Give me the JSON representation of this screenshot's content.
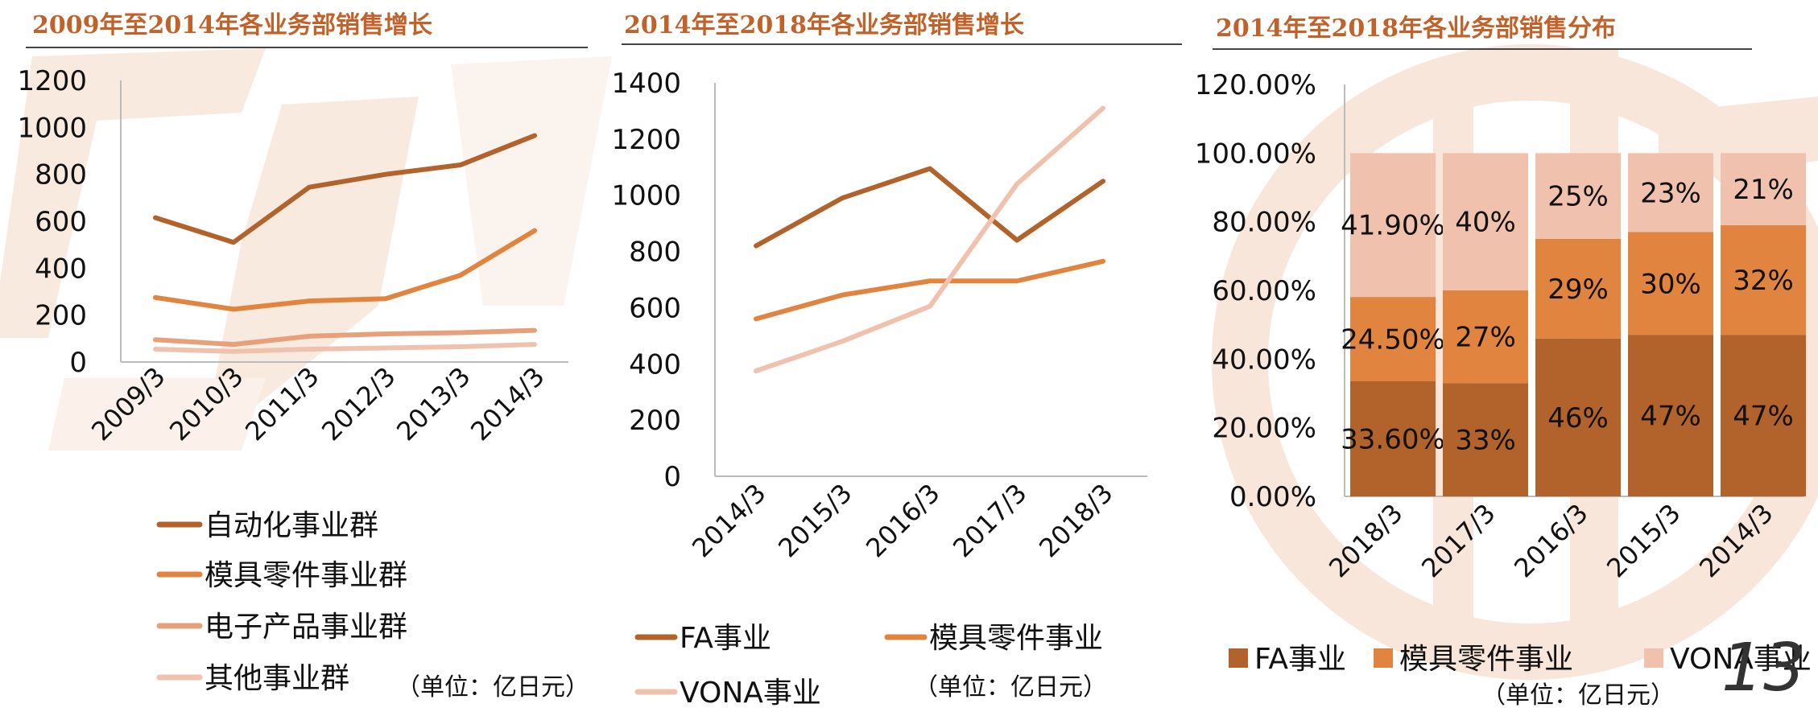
{
  "page": {
    "number": "13"
  },
  "colors": {
    "dark": "#B2622B",
    "mid": "#E0843F",
    "light": "#E7A07A",
    "pale": "#F0C2AE",
    "title": "#C0622A",
    "watermark": "#F6E5D8"
  },
  "chart_data": [
    {
      "type": "line",
      "title": "2009年至2014年各业务部销售增长",
      "unit": "（单位：亿日元）",
      "categories": [
        "2009/3",
        "2010/3",
        "2011/3",
        "2012/3",
        "2013/3",
        "2014/3"
      ],
      "ylim": [
        0,
        1200
      ],
      "yticks": [
        "0",
        "200",
        "400",
        "600",
        "800",
        "1000",
        "1200"
      ],
      "grid": false,
      "legend_position": "bottom",
      "series": [
        {
          "name": "自动化事业群",
          "color": "#B2622B",
          "values": [
            615,
            510,
            745,
            800,
            840,
            965
          ]
        },
        {
          "name": "模具零件事业群",
          "color": "#E0843F",
          "values": [
            275,
            225,
            260,
            270,
            370,
            560
          ]
        },
        {
          "name": "电子产品事业群",
          "color": "#E7A07A",
          "values": [
            95,
            75,
            110,
            120,
            125,
            135
          ]
        },
        {
          "name": "其他事业群",
          "color": "#F0C2AE",
          "values": [
            55,
            45,
            55,
            60,
            65,
            75
          ]
        }
      ]
    },
    {
      "type": "line",
      "title": "2014年至2018年各业务部销售增长",
      "unit": "（单位：亿日元）",
      "categories": [
        "2014/3",
        "2015/3",
        "2016/3",
        "2017/3",
        "2018/3"
      ],
      "ylim": [
        0,
        1400
      ],
      "yticks": [
        "0",
        "200",
        "400",
        "600",
        "800",
        "1000",
        "1200",
        "1400"
      ],
      "grid": false,
      "legend_position": "bottom",
      "series": [
        {
          "name": "FA事业",
          "color": "#B2622B",
          "values": [
            820,
            990,
            1095,
            840,
            1050
          ]
        },
        {
          "name": "模具零件事业",
          "color": "#E0843F",
          "values": [
            560,
            645,
            695,
            695,
            765
          ]
        },
        {
          "name": "VONA事业",
          "color": "#F0C2AE",
          "values": [
            375,
            480,
            605,
            1040,
            1310
          ]
        }
      ]
    },
    {
      "type": "bar",
      "stacked": true,
      "title": "2014年至2018年各业务部销售分布",
      "unit": "（单位：亿日元）",
      "categories": [
        "2018/3",
        "2017/3",
        "2016/3",
        "2015/3",
        "2014/3"
      ],
      "ylim": [
        0,
        1.2
      ],
      "yticks": [
        "0.00%",
        "20.00%",
        "40.00%",
        "60.00%",
        "80.00%",
        "100.00%",
        "120.00%"
      ],
      "grid": false,
      "legend_position": "bottom",
      "series": [
        {
          "name": "FA事业",
          "color": "#B2622B",
          "values": [
            0.336,
            0.33,
            0.46,
            0.47,
            0.47
          ],
          "labels": [
            "33.60%",
            "33%",
            "46%",
            "47%",
            "47%"
          ]
        },
        {
          "name": "模具零件事业",
          "color": "#E0843F",
          "values": [
            0.245,
            0.27,
            0.29,
            0.3,
            0.32
          ],
          "labels": [
            "24.50%",
            "27%",
            "29%",
            "30%",
            "32%"
          ]
        },
        {
          "name": "VONA事业",
          "color": "#F0C2AE",
          "values": [
            0.419,
            0.4,
            0.25,
            0.23,
            0.21
          ],
          "labels": [
            "41.90%",
            "40%",
            "25%",
            "23%",
            "21%"
          ]
        }
      ]
    }
  ]
}
